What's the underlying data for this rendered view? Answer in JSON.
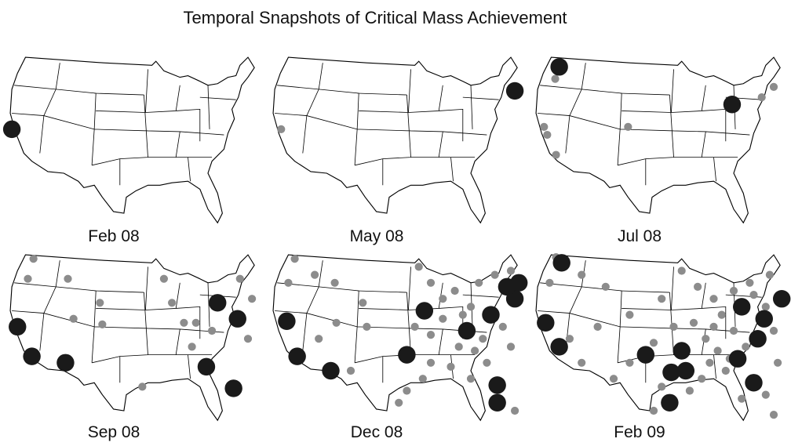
{
  "title": "Temporal Snapshots of Critical Mass Achievement",
  "panels": [
    {
      "label": "Feb 08"
    },
    {
      "label": "May 08"
    },
    {
      "label": "Jul 08"
    },
    {
      "label": "Sep 08"
    },
    {
      "label": "Dec 08"
    },
    {
      "label": "Feb 09"
    }
  ]
}
